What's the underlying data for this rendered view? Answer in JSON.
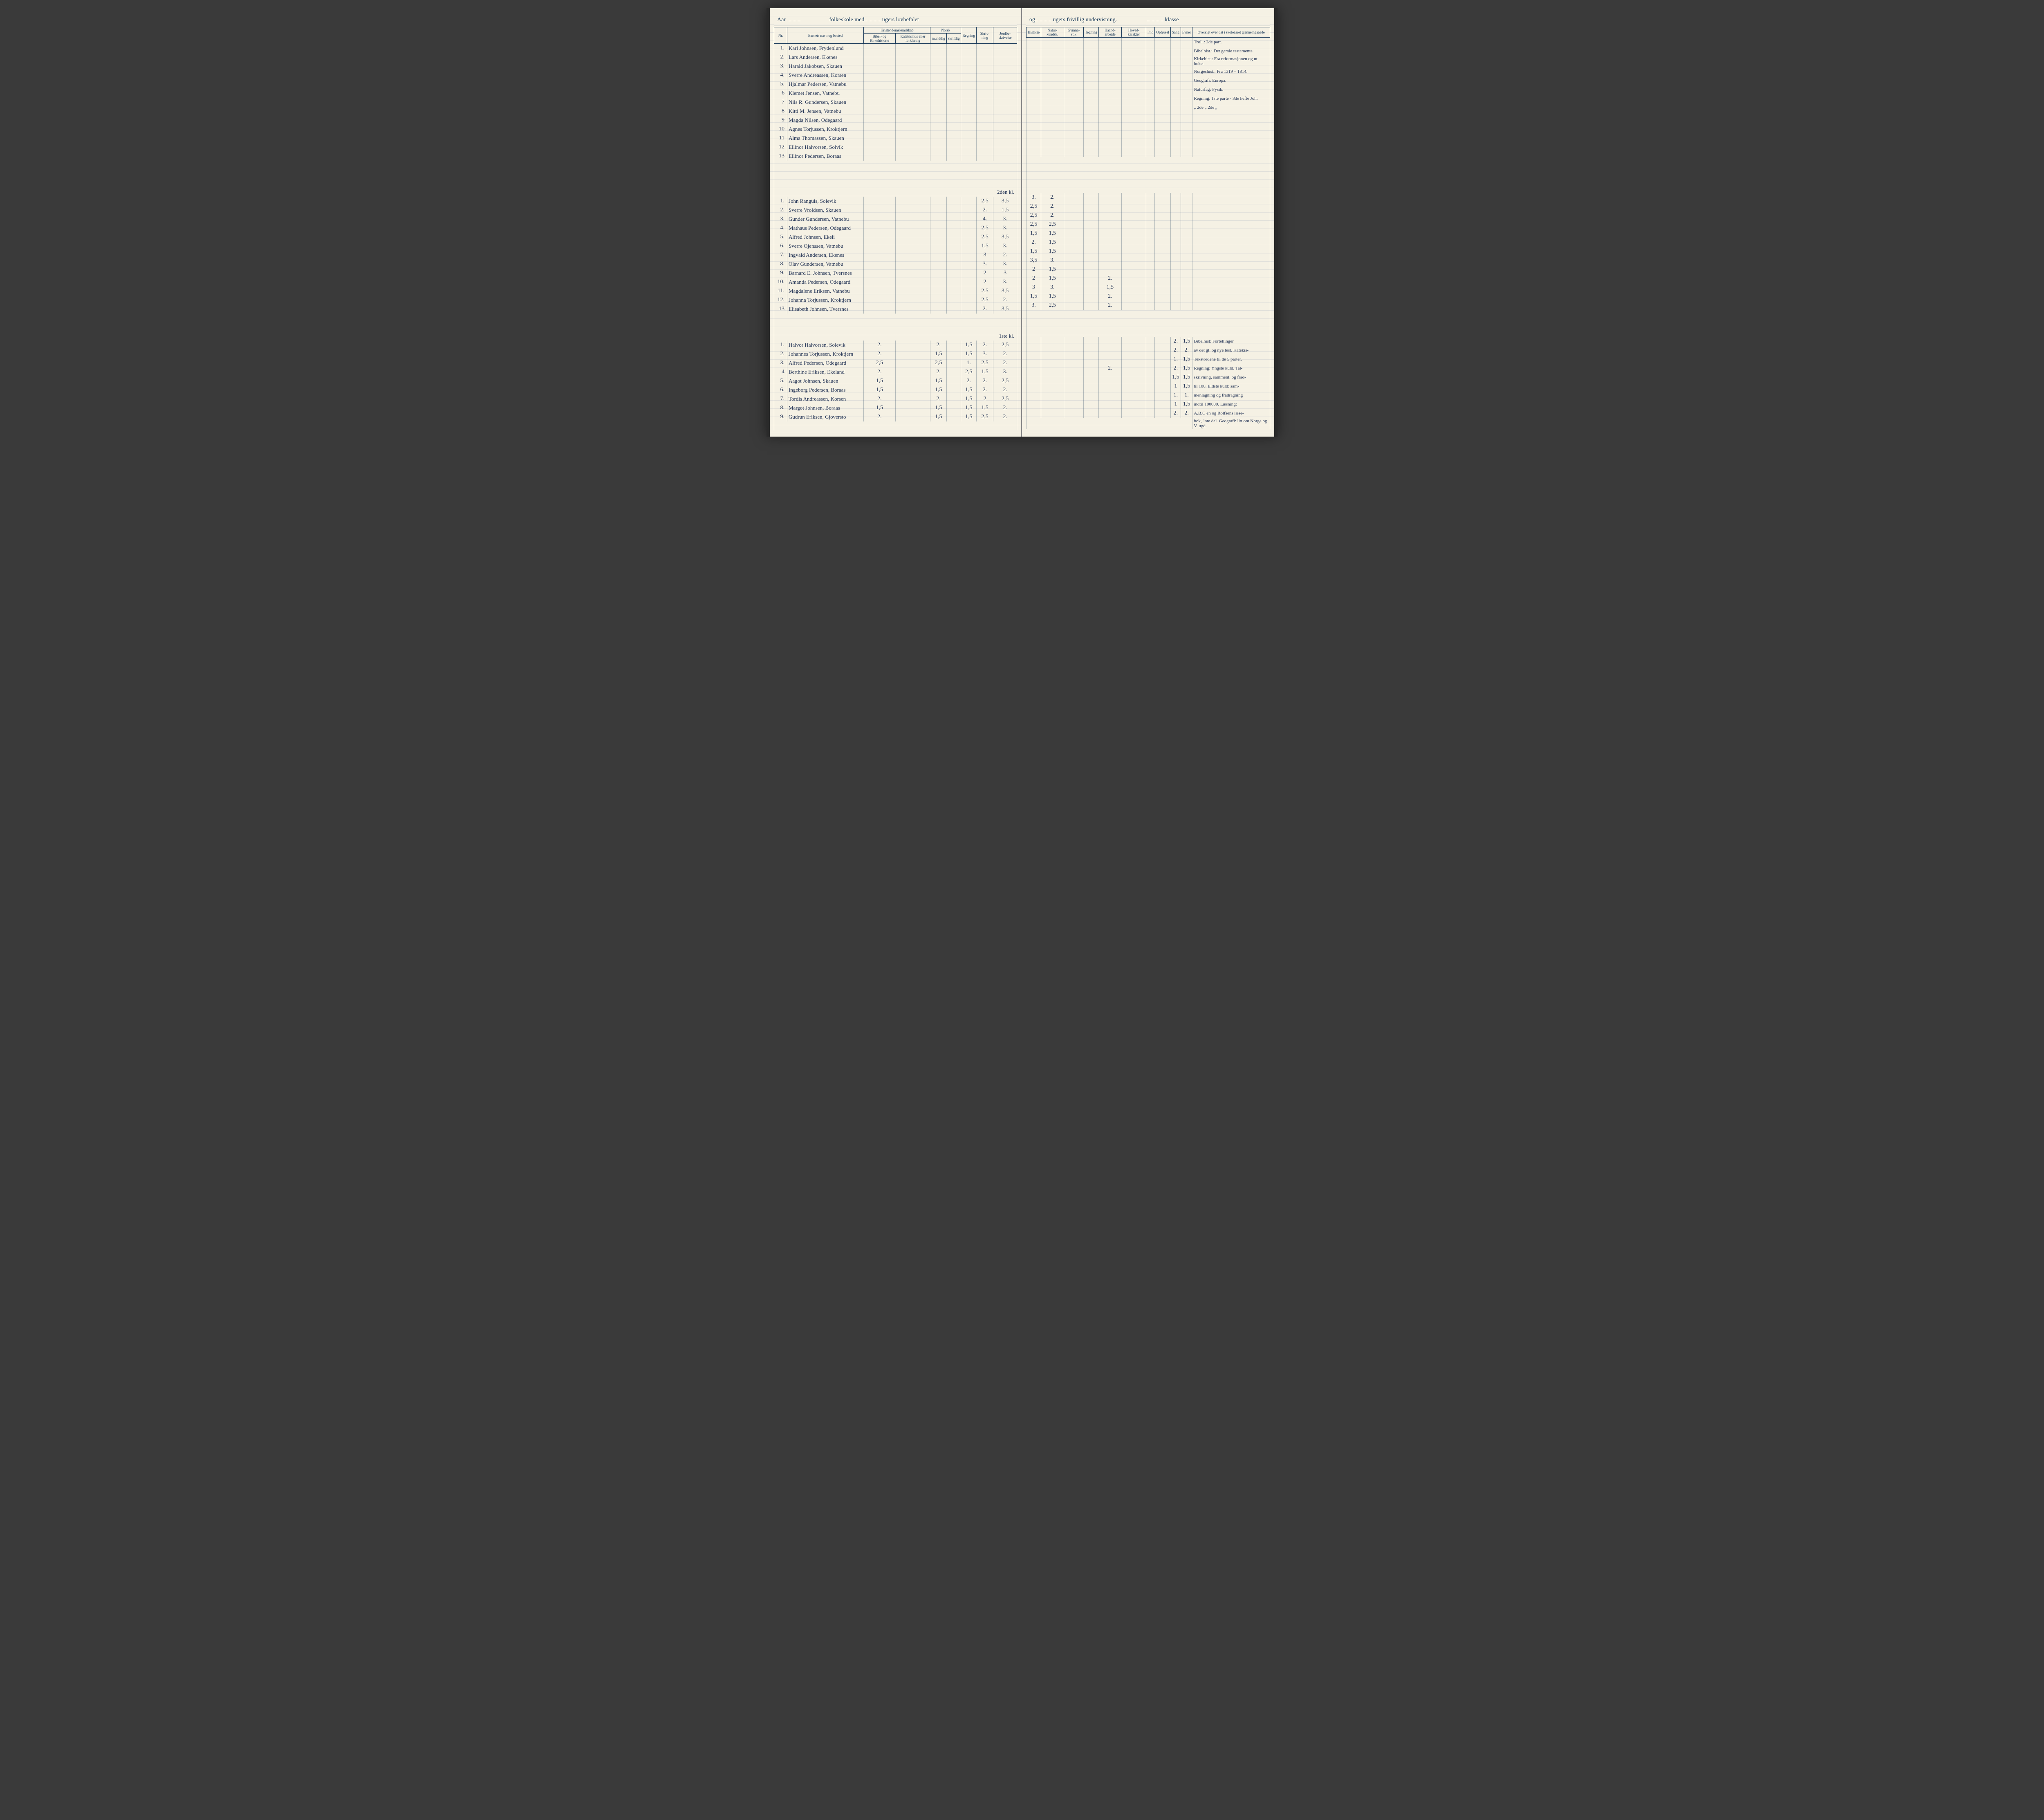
{
  "header": {
    "left": "Aar",
    "middle": "folkeskole med",
    "middle2": "ugers lovbefalet",
    "right1": "og",
    "right2": "ugers frivillig undervisning.",
    "right3": "klasse"
  },
  "columns_left": {
    "nr": "Nr.",
    "name": "Barnets navn og bosted",
    "kristendom": "Kristendomskundskab",
    "bibel": "Bibel- og Kirkehistorie",
    "katekismus": "Katekismus eller forklaring",
    "norsk": "Norsk",
    "mundtlig": "mundtlig",
    "skriftlig": "skriftlig",
    "regning": "Regning",
    "skrivning": "Skriv-\nning",
    "jordbeskrivelse": "Jordbe-\nskrivelse"
  },
  "columns_right": {
    "historie": "Historie",
    "naturkundsk": "Natur-\nkundsk.",
    "gymnastik": "Gymna-\nstik",
    "tegning": "Tegning",
    "haandarbeide": "Haand-\narbeide",
    "hovedkarakter": "Hoved-\nkarakter",
    "flid": "Flid",
    "opforsel": "Opførsel",
    "sang": "Sang",
    "evner": "Evner",
    "oversigt": "Oversigt over det i\nskoleaaret gjennemgaaede"
  },
  "section1": {
    "rows": [
      {
        "nr": "1.",
        "name": "Karl Johnsen, Frydenlund"
      },
      {
        "nr": "2.",
        "name": "Lars Andersen, Ekenes"
      },
      {
        "nr": "3.",
        "name": "Harald Jakobsen, Skauen"
      },
      {
        "nr": "4.",
        "name": "Sverre Andreassen, Korsen"
      },
      {
        "nr": "5.",
        "name": "Hjalmar Pedersen, Vatnebu"
      },
      {
        "nr": "6",
        "name": "Klemet Jensen, Vatnebu"
      },
      {
        "nr": "7",
        "name": "Nils R. Gundersen, Skauen"
      },
      {
        "nr": "8",
        "name": "Kitti M. Jensen, Vatnebu"
      },
      {
        "nr": "9",
        "name": "Magda Nilsen, Odegaard"
      },
      {
        "nr": "10",
        "name": "Agnes Torjussen, Kroktjern"
      },
      {
        "nr": "11",
        "name": "Alma Thomassen, Skauen"
      },
      {
        "nr": "12",
        "name": "Ellinor Halvorsen, Solvik"
      },
      {
        "nr": "13",
        "name": "Ellinor Pedersen, Boraas"
      }
    ],
    "notes": [
      "Troll.: 2de part.",
      "Bibelhist.: Det gamle testamente.",
      "Kirkehist.: Fra reformasjonen og ut boke-",
      "Norgeshist.: Fra 1319 – 1814.",
      "Geografi: Europa.",
      "Naturfag: Fysik.",
      "Regning: 1ste parte - 3de hefte Joh.",
      "  „    2de   „   2de  „"
    ]
  },
  "section2": {
    "label": "2den kl.",
    "rows": [
      {
        "nr": "1.",
        "name": "John Rangüis, Solevik",
        "skr": "2,5",
        "jord": "3,5",
        "hist": "3.",
        "nat": "2."
      },
      {
        "nr": "2.",
        "name": "Sverre Vroldsen, Skauen",
        "skr": "2.",
        "jord": "1,5",
        "hist": "2,5",
        "nat": "2."
      },
      {
        "nr": "3.",
        "name": "Gunder Gundersen, Vatnebu",
        "skr": "4.",
        "jord": "3.",
        "hist": "2,5",
        "nat": "2."
      },
      {
        "nr": "4.",
        "name": "Mathaus Pedersen, Odegaard",
        "skr": "2,5",
        "jord": "3.",
        "hist": "2,5",
        "nat": "2,5"
      },
      {
        "nr": "5.",
        "name": "Alfred Johnsen, Ekeli",
        "skr": "2,5",
        "jord": "3,5",
        "hist": "1,5",
        "nat": "1,5"
      },
      {
        "nr": "6.",
        "name": "Sverre Ojenssen, Vatnebu",
        "skr": "1,5",
        "jord": "3.",
        "hist": "2.",
        "nat": "1,5"
      },
      {
        "nr": "7.",
        "name": "Ingvald Andersen, Ekenes",
        "skr": "3",
        "jord": "2.",
        "hist": "1,5",
        "nat": "1,5"
      },
      {
        "nr": "8.",
        "name": "Olav Gundersen, Vatnebu",
        "skr": "3.",
        "jord": "3.",
        "hist": "3,5",
        "nat": "3."
      },
      {
        "nr": "9.",
        "name": "Barnard E. Johnsen, Tversnes",
        "skr": "2",
        "jord": "3",
        "hist": "2",
        "nat": "1,5"
      },
      {
        "nr": "10.",
        "name": "Amanda Pedersen, Odegaard",
        "skr": "2",
        "jord": "3.",
        "hist": "2",
        "nat": "1,5",
        "haand": "2."
      },
      {
        "nr": "11.",
        "name": "Magdalene Eriksen, Vatnebu",
        "skr": "2,5",
        "jord": "3,5",
        "hist": "3",
        "nat": "3.",
        "haand": "1,5"
      },
      {
        "nr": "12.",
        "name": "Johanna Torjussen, Kroktjern",
        "skr": "2,5",
        "jord": "2.",
        "hist": "1,5",
        "nat": "1,5",
        "haand": "2."
      },
      {
        "nr": "13",
        "name": "Elisabeth Johnsen, Tversnes",
        "skr": "2.",
        "jord": "3,5",
        "hist": "3.",
        "nat": "2,5",
        "haand": "2."
      }
    ]
  },
  "section3": {
    "label": "1ste kl.",
    "rows": [
      {
        "nr": "1.",
        "name": "Halvor Halvorsen, Solevik",
        "bib": "2.",
        "mun": "2.",
        "reg": "1,5",
        "skr": "2.",
        "jord": "2,5",
        "sang": "2.",
        "evn": "1,5"
      },
      {
        "nr": "2.",
        "name": "Johannes Torjussen, Kroktjern",
        "bib": "2.",
        "mun": "1,5",
        "reg": "1,5",
        "skr": "3.",
        "jord": "2.",
        "sang": "2.",
        "evn": "2."
      },
      {
        "nr": "3.",
        "name": "Alfred Pedersen, Odegaard",
        "bib": "2,5",
        "mun": "2,5",
        "reg": "1.",
        "skr": "2,5",
        "jord": "2.",
        "sang": "1.",
        "evn": "1,5"
      },
      {
        "nr": "4",
        "name": "Berthine Eriksen, Ekeland",
        "bib": "2.",
        "mun": "2.",
        "reg": "2,5",
        "skr": "1,5",
        "jord": "3.",
        "haand": "2.",
        "sang": "2.",
        "evn": "1,5"
      },
      {
        "nr": "5.",
        "name": "Aagot Johnsen, Skauen",
        "bib": "1,5",
        "mun": "1,5",
        "reg": "2.",
        "skr": "2.",
        "jord": "2,5",
        "sang": "1,5",
        "evn": "1,5"
      },
      {
        "nr": "6.",
        "name": "Ingeborg Pedersen, Boraas",
        "bib": "1,5",
        "mun": "1,5",
        "reg": "1,5",
        "skr": "2.",
        "jord": "2.",
        "sang": "1",
        "evn": "1,5"
      },
      {
        "nr": "7.",
        "name": "Tordis Andreassen, Korsen",
        "bib": "2.",
        "mun": "2.",
        "reg": "1,5",
        "skr": "2",
        "jord": "2,5",
        "sang": "1.",
        "evn": "1."
      },
      {
        "nr": "8.",
        "name": "Margot Johnsen, Boraas",
        "bib": "1,5",
        "mun": "1,5",
        "reg": "1,5",
        "skr": "1,5",
        "jord": "2.",
        "sang": "1",
        "evn": "1,5"
      },
      {
        "nr": "9.",
        "name": "Gudrun Eriksen, Gjoversto",
        "bib": "2.",
        "mun": "1,5",
        "reg": "1,5",
        "skr": "2,5",
        "jord": "2.",
        "sang": "2.",
        "evn": "2."
      }
    ],
    "notes": [
      "Bibelhist: Fortellinger",
      "av det gl. og nye test. Katekis-",
      "Tekstordene til de 5 parter.",
      "Regning: Yngste kuld. Tal-",
      "skrivning, sammenl. og frad-",
      "til 100. Eldste kuld: sam-",
      "menlagning og fradragning",
      "indtil 100000. Læsning:",
      "A.B.C en og Rolfsens læse-",
      "bok, 1ste del. Geografi: litt om Norge og V. ugd."
    ]
  }
}
